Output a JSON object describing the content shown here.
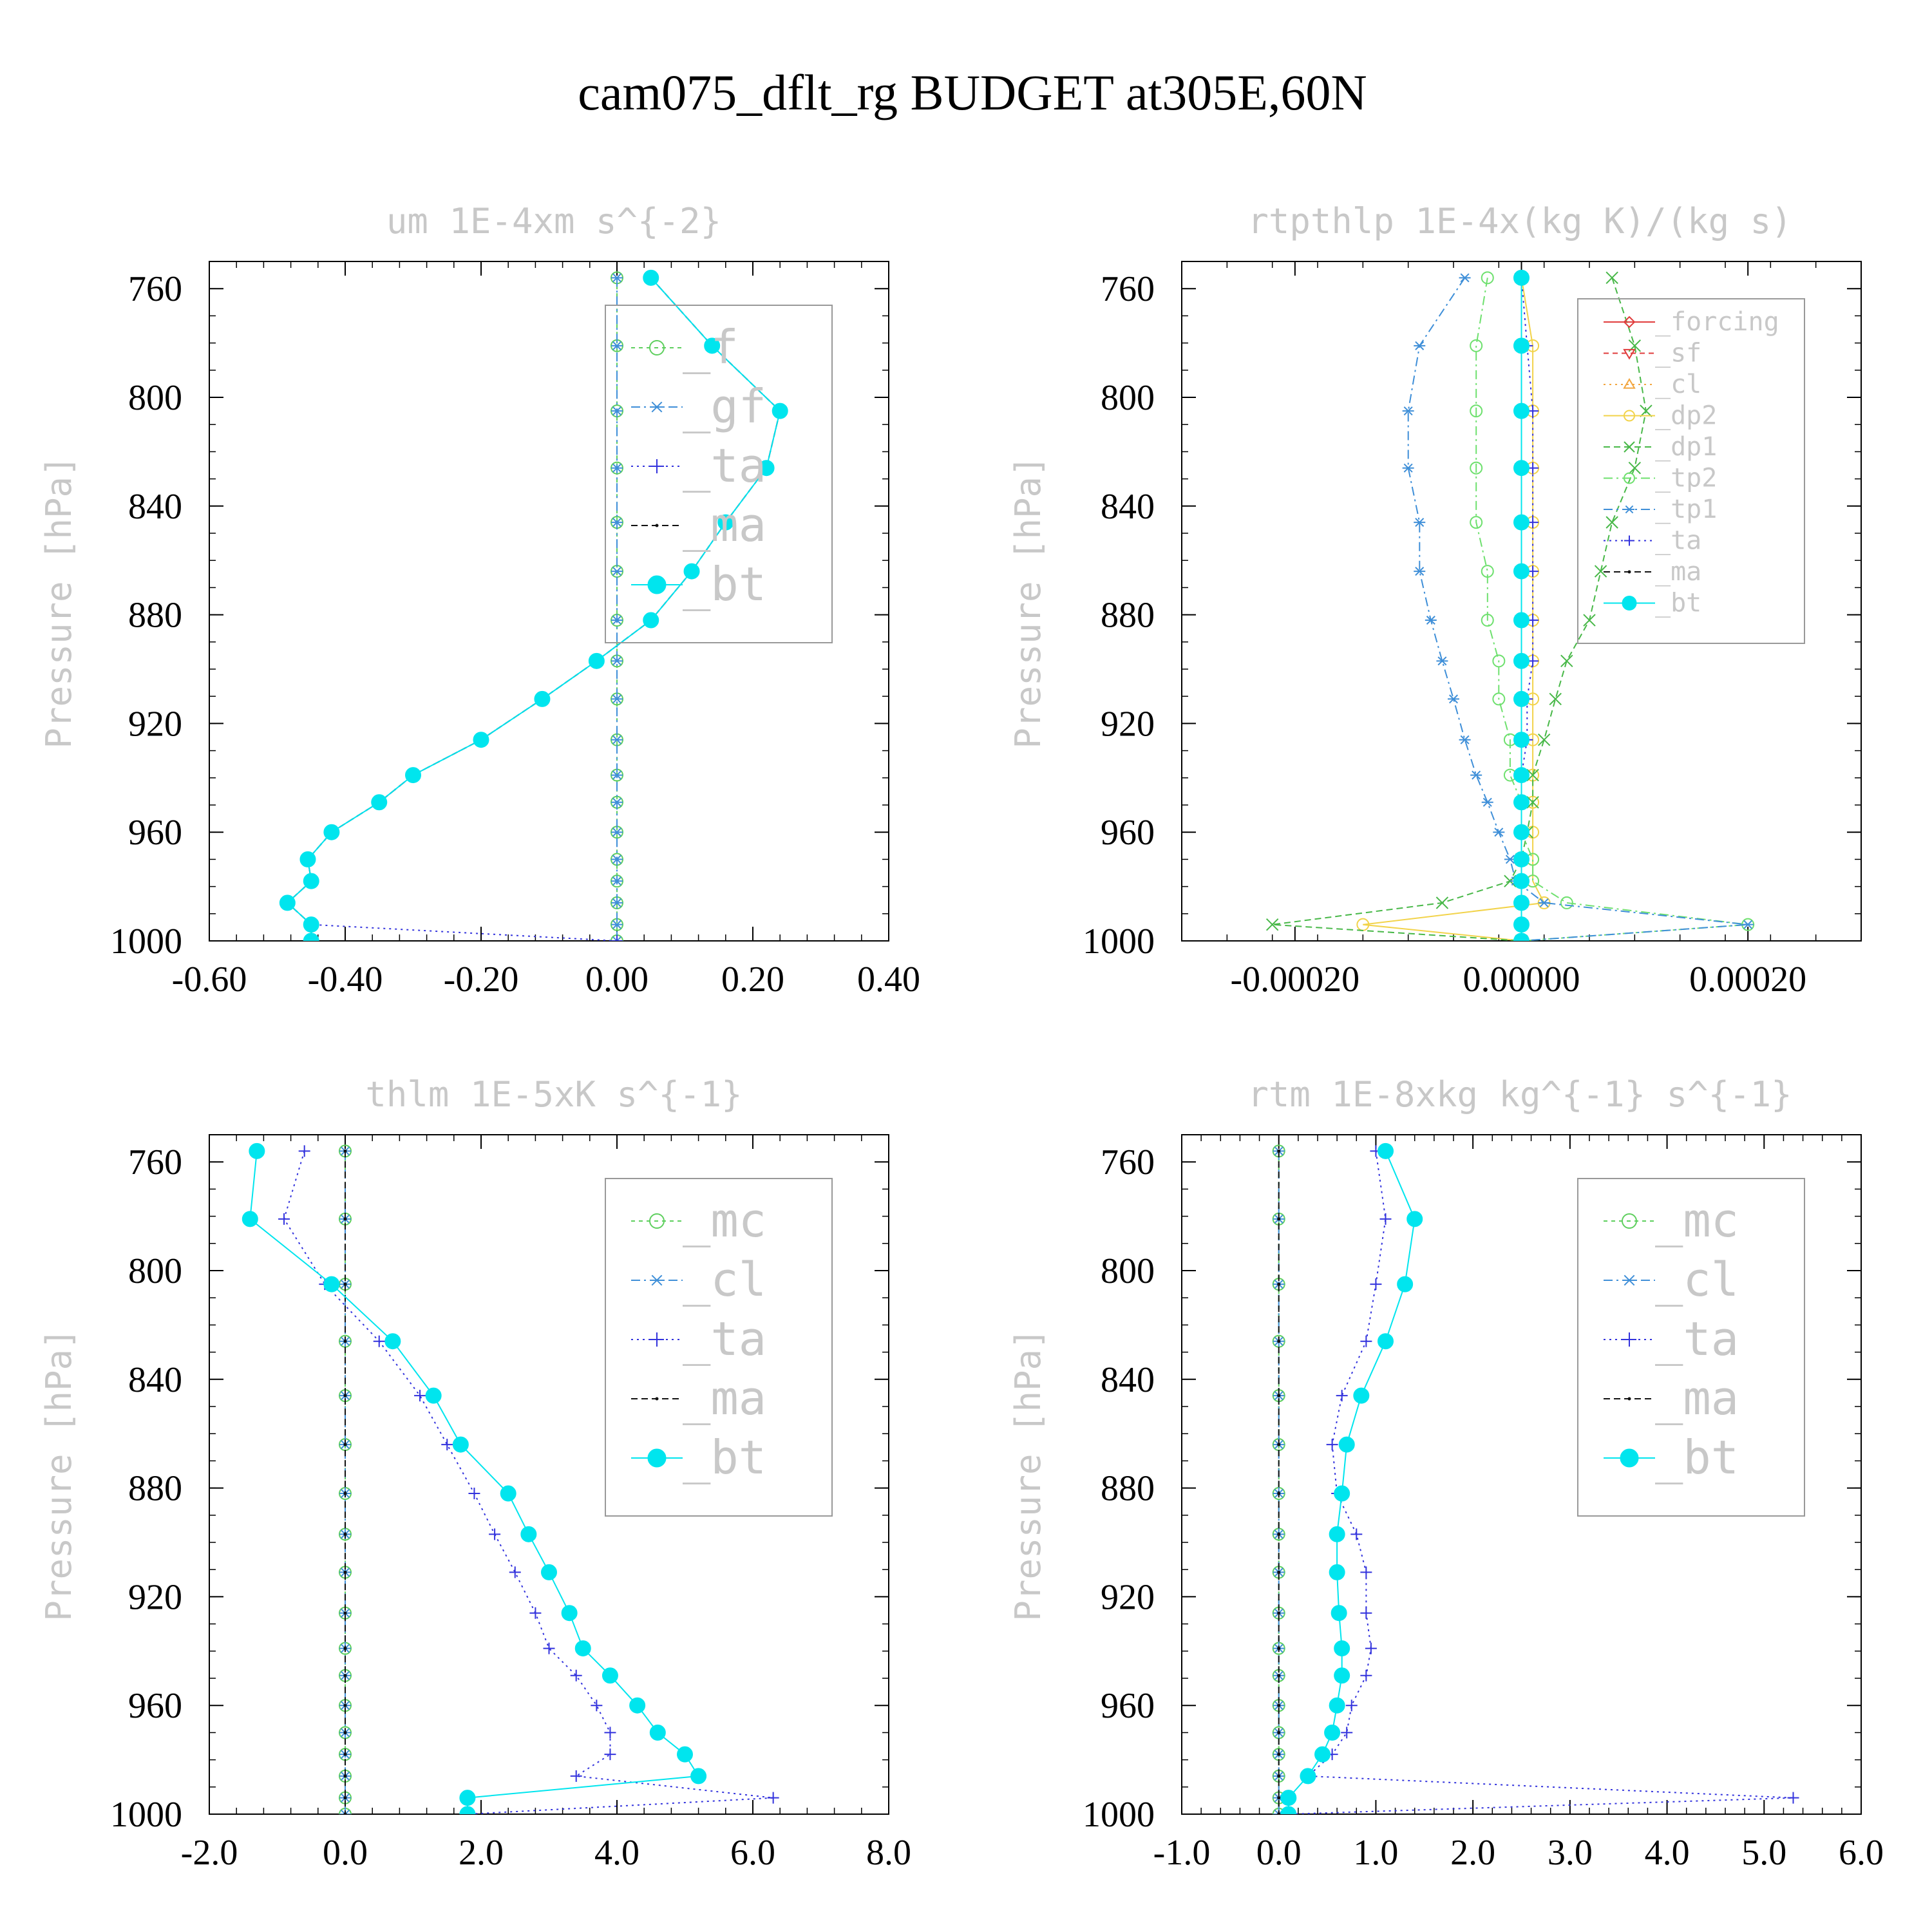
{
  "title": "cam075_dflt_rg  BUDGET at305E,60N",
  "chart_data": [
    {
      "type": "line",
      "title": "um  1E-4xm s^{-2}",
      "ylabel": "Pressure [hPa]",
      "xlabel": "",
      "xlim": [
        -0.6,
        0.4
      ],
      "ylim": [
        1000,
        750
      ],
      "xticks": [
        "-0.60",
        "-0.40",
        "-0.20",
        "0.00",
        "0.20",
        "0.40"
      ],
      "xtick_values": [
        -0.6,
        -0.4,
        -0.2,
        0.0,
        0.2,
        0.4
      ],
      "yticks": [
        "760",
        "800",
        "840",
        "880",
        "920",
        "960",
        "1000"
      ],
      "ytick_values": [
        760,
        800,
        840,
        880,
        920,
        960,
        1000
      ],
      "legend_position": "top-right",
      "legend_size": "large",
      "y": [
        756,
        781,
        805,
        826,
        846,
        864,
        882,
        897,
        911,
        926,
        939,
        949,
        960,
        970,
        978,
        986,
        994,
        1000
      ],
      "series": [
        {
          "name": "_f",
          "color": "#5ecf5e",
          "marker": "circle",
          "dash": "6,6",
          "values": [
            0,
            0,
            0,
            0,
            0,
            0,
            0,
            0,
            0,
            0,
            0,
            0,
            0,
            0,
            0,
            0,
            0,
            0
          ]
        },
        {
          "name": "_gf",
          "color": "#3f8fd8",
          "marker": "asterisk",
          "dash": "14,6,3,6",
          "values": [
            0,
            0,
            0,
            0,
            0,
            0,
            0,
            0,
            0,
            0,
            0,
            0,
            0,
            0,
            0,
            0,
            0,
            0
          ]
        },
        {
          "name": "_ta",
          "color": "#3333dd",
          "marker": "plus",
          "dash": "3,6",
          "values": [
            0.05,
            0.14,
            0.24,
            0.22,
            0.16,
            0.11,
            0.05,
            -0.03,
            -0.11,
            -0.2,
            -0.3,
            -0.35,
            -0.42,
            -0.455,
            -0.45,
            -0.485,
            -0.45,
            0.0
          ]
        },
        {
          "name": "_ma",
          "color": "#111111",
          "marker": "dot",
          "dash": "10,6",
          "values": [
            0.05,
            0.14,
            0.24,
            0.22,
            0.16,
            0.11,
            0.05,
            -0.03,
            -0.11,
            -0.2,
            -0.3,
            -0.35,
            -0.42,
            -0.455,
            -0.45,
            -0.485,
            -0.45,
            -0.45
          ]
        },
        {
          "name": "_bt",
          "color": "#00e5ee",
          "marker": "filled-circle",
          "dash": "",
          "values": [
            0.05,
            0.14,
            0.24,
            0.22,
            0.16,
            0.11,
            0.05,
            -0.03,
            -0.11,
            -0.2,
            -0.3,
            -0.35,
            -0.42,
            -0.455,
            -0.45,
            -0.485,
            -0.45,
            -0.45
          ]
        }
      ]
    },
    {
      "type": "line",
      "title": "rtpthlp  1E-4x(kg K)/(kg s)",
      "ylabel": "Pressure [hPa]",
      "xlabel": "",
      "xlim": [
        -0.0003,
        0.0003
      ],
      "ylim": [
        1000,
        750
      ],
      "xticks": [
        "-0.00020",
        "0.00000",
        "0.00020"
      ],
      "xtick_values": [
        -0.0002,
        0.0,
        0.0002
      ],
      "yticks": [
        "760",
        "800",
        "840",
        "880",
        "920",
        "960",
        "1000"
      ],
      "ytick_values": [
        760,
        800,
        840,
        880,
        920,
        960,
        1000
      ],
      "legend_position": "top-right",
      "legend_size": "small",
      "y": [
        756,
        781,
        805,
        826,
        846,
        864,
        882,
        897,
        911,
        926,
        939,
        949,
        960,
        970,
        978,
        986,
        994,
        1000
      ],
      "series": [
        {
          "name": "_forcing",
          "color": "#e03c3c",
          "marker": "diamond",
          "dash": "",
          "values": [
            0,
            0,
            0,
            0,
            0,
            0,
            0,
            0,
            0,
            0,
            0,
            0,
            0,
            0,
            0,
            0,
            0,
            0
          ]
        },
        {
          "name": "_sf",
          "color": "#e03c3c",
          "marker": "triangle-down",
          "dash": "8,6",
          "values": [
            0,
            0,
            0,
            0,
            0,
            0,
            0,
            0,
            0,
            0,
            0,
            0,
            0,
            0,
            0,
            0,
            0,
            0
          ]
        },
        {
          "name": "_cl",
          "color": "#f2a640",
          "marker": "triangle-up",
          "dash": "3,6",
          "values": [
            0,
            0,
            0,
            0,
            0,
            0,
            0,
            0,
            0,
            0,
            0,
            0,
            0,
            0,
            0,
            0,
            0,
            0
          ]
        },
        {
          "name": "_dp2",
          "color": "#f2d34a",
          "marker": "circle",
          "dash": "",
          "values": [
            0,
            1e-05,
            1e-05,
            1e-05,
            1e-05,
            1e-05,
            1e-05,
            1e-05,
            1e-05,
            1e-05,
            1e-05,
            1e-05,
            1e-05,
            1e-05,
            1e-05,
            2e-05,
            -0.00014,
            0
          ]
        },
        {
          "name": "_dp1",
          "color": "#48b848",
          "marker": "x",
          "dash": "10,6",
          "values": [
            8e-05,
            0.0001,
            0.00011,
            0.0001,
            8e-05,
            7e-05,
            6e-05,
            4e-05,
            3e-05,
            2e-05,
            1e-05,
            1e-05,
            5e-06,
            0.0,
            -1e-05,
            -7e-05,
            -0.00022,
            0.0
          ]
        },
        {
          "name": "_tp2",
          "color": "#6ee06e",
          "marker": "circle",
          "dash": "14,6,3,6",
          "values": [
            -3e-05,
            -4e-05,
            -4e-05,
            -4e-05,
            -4e-05,
            -3e-05,
            -3e-05,
            -2e-05,
            -2e-05,
            -1e-05,
            -1e-05,
            0.0,
            0.0,
            1e-05,
            1e-05,
            4e-05,
            0.0002,
            0.0
          ]
        },
        {
          "name": "_tp1",
          "color": "#3f8fd8",
          "marker": "asterisk",
          "dash": "14,6,3,6",
          "values": [
            -5e-05,
            -9e-05,
            -0.0001,
            -0.0001,
            -9e-05,
            -9e-05,
            -8e-05,
            -7e-05,
            -6e-05,
            -5e-05,
            -4e-05,
            -3e-05,
            -2e-05,
            -1e-05,
            -5e-06,
            2e-05,
            0.0002,
            0.0
          ]
        },
        {
          "name": "_ta",
          "color": "#3333dd",
          "marker": "plus",
          "dash": "3,6",
          "values": [
            0.0,
            5e-06,
            1e-05,
            1e-05,
            1e-05,
            1e-05,
            1e-05,
            1e-05,
            5e-06,
            5e-06,
            0.0,
            0.0,
            0.0,
            0.0,
            0.0,
            0.0,
            0.0,
            0.0
          ]
        },
        {
          "name": "_ma",
          "color": "#111111",
          "marker": "dot",
          "dash": "10,6",
          "values": [
            0,
            0,
            0,
            0,
            0,
            0,
            0,
            0,
            0,
            0,
            0,
            0,
            0,
            0,
            0,
            0,
            0,
            0
          ]
        },
        {
          "name": "_bt",
          "color": "#00e5ee",
          "marker": "filled-circle",
          "dash": "",
          "values": [
            0,
            0,
            0,
            0,
            0,
            0,
            0,
            0,
            0,
            0,
            0,
            0,
            0,
            0,
            0,
            0,
            0,
            0
          ]
        }
      ]
    },
    {
      "type": "line",
      "title": "thlm  1E-5xK s^{-1}",
      "ylabel": "Pressure [hPa]",
      "xlabel": "",
      "xlim": [
        -2.0,
        8.0
      ],
      "ylim": [
        1000,
        750
      ],
      "xticks": [
        "-2.0",
        "0.0",
        "2.0",
        "4.0",
        "6.0",
        "8.0"
      ],
      "xtick_values": [
        -2.0,
        0.0,
        2.0,
        4.0,
        6.0,
        8.0
      ],
      "yticks": [
        "760",
        "800",
        "840",
        "880",
        "920",
        "960",
        "1000"
      ],
      "ytick_values": [
        760,
        800,
        840,
        880,
        920,
        960,
        1000
      ],
      "legend_position": "top-right",
      "legend_size": "large",
      "y": [
        756,
        781,
        805,
        826,
        846,
        864,
        882,
        897,
        911,
        926,
        939,
        949,
        960,
        970,
        978,
        986,
        994,
        1000
      ],
      "series": [
        {
          "name": "_mc",
          "color": "#5ecf5e",
          "marker": "circle",
          "dash": "6,6",
          "values": [
            0,
            0,
            0,
            0,
            0,
            0,
            0,
            0,
            0,
            0,
            0,
            0,
            0,
            0,
            0,
            0,
            0,
            0
          ]
        },
        {
          "name": "_cl",
          "color": "#3f8fd8",
          "marker": "asterisk",
          "dash": "14,6,3,6",
          "values": [
            0,
            0,
            0,
            0,
            0,
            0,
            0,
            0,
            0,
            0,
            0,
            0,
            0,
            0,
            0,
            0,
            0,
            0
          ]
        },
        {
          "name": "_ta",
          "color": "#3333dd",
          "marker": "plus",
          "dash": "3,6",
          "values": [
            -0.6,
            -0.9,
            -0.3,
            0.5,
            1.1,
            1.5,
            1.9,
            2.2,
            2.5,
            2.8,
            3.0,
            3.4,
            3.7,
            3.9,
            3.9,
            3.4,
            6.3,
            1.8
          ]
        },
        {
          "name": "_ma",
          "color": "#111111",
          "marker": "dot",
          "dash": "10,6",
          "values": [
            0,
            0,
            0,
            0,
            0,
            0,
            0,
            0,
            0,
            0,
            0,
            0,
            0,
            0,
            0,
            0,
            0,
            0
          ]
        },
        {
          "name": "_bt",
          "color": "#00e5ee",
          "marker": "filled-circle",
          "dash": "",
          "values": [
            -1.3,
            -1.4,
            -0.2,
            0.7,
            1.3,
            1.7,
            2.4,
            2.7,
            3.0,
            3.3,
            3.5,
            3.9,
            4.3,
            4.6,
            5.0,
            5.2,
            1.8,
            1.8
          ]
        }
      ]
    },
    {
      "type": "line",
      "title": "rtm  1E-8xkg kg^{-1} s^{-1}",
      "ylabel": "Pressure [hPa]",
      "xlabel": "",
      "xlim": [
        -1.0,
        6.0
      ],
      "ylim": [
        1000,
        750
      ],
      "xticks": [
        "-1.0",
        "0.0",
        "1.0",
        "2.0",
        "3.0",
        "4.0",
        "5.0",
        "6.0"
      ],
      "xtick_values": [
        -1.0,
        0.0,
        1.0,
        2.0,
        3.0,
        4.0,
        5.0,
        6.0
      ],
      "yticks": [
        "760",
        "800",
        "840",
        "880",
        "920",
        "960",
        "1000"
      ],
      "ytick_values": [
        760,
        800,
        840,
        880,
        920,
        960,
        1000
      ],
      "legend_position": "top-right",
      "legend_size": "large",
      "y": [
        756,
        781,
        805,
        826,
        846,
        864,
        882,
        897,
        911,
        926,
        939,
        949,
        960,
        970,
        978,
        986,
        994,
        1000
      ],
      "series": [
        {
          "name": "_mc",
          "color": "#5ecf5e",
          "marker": "circle",
          "dash": "6,6",
          "values": [
            0,
            0,
            0,
            0,
            0,
            0,
            0,
            0,
            0,
            0,
            0,
            0,
            0,
            0,
            0,
            0,
            0,
            0
          ]
        },
        {
          "name": "_cl",
          "color": "#3f8fd8",
          "marker": "asterisk",
          "dash": "14,6,3,6",
          "values": [
            0,
            0,
            0,
            0,
            0,
            0,
            0,
            0,
            0,
            0,
            0,
            0,
            0,
            0,
            0,
            0,
            0,
            0
          ]
        },
        {
          "name": "_ta",
          "color": "#3333dd",
          "marker": "plus",
          "dash": "3,6",
          "values": [
            1.0,
            1.1,
            1.0,
            0.9,
            0.65,
            0.55,
            0.6,
            0.8,
            0.9,
            0.9,
            0.95,
            0.9,
            0.75,
            0.7,
            0.55,
            0.3,
            5.3,
            0.1
          ]
        },
        {
          "name": "_ma",
          "color": "#111111",
          "marker": "dot",
          "dash": "10,6",
          "values": [
            0,
            0,
            0,
            0,
            0,
            0,
            0,
            0,
            0,
            0,
            0,
            0,
            0,
            0,
            0,
            0,
            0,
            0
          ]
        },
        {
          "name": "_bt",
          "color": "#00e5ee",
          "marker": "filled-circle",
          "dash": "",
          "values": [
            1.1,
            1.4,
            1.3,
            1.1,
            0.85,
            0.7,
            0.65,
            0.6,
            0.6,
            0.62,
            0.65,
            0.65,
            0.6,
            0.55,
            0.45,
            0.3,
            0.1,
            0.1
          ]
        }
      ]
    }
  ]
}
